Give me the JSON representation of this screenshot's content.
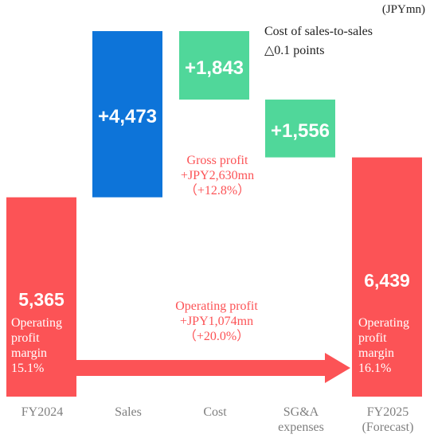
{
  "unit_label": "(JPYmn)",
  "cost_ratio_note": [
    "Cost of sales-to-sales",
    "△0.1 points"
  ],
  "gross_profit_note": [
    "Gross profit",
    "+JPY2,630mn",
    "（+12.8%）"
  ],
  "operating_profit_note": [
    "Operating profit",
    "+JPY1,074mn",
    "（+20.0%）"
  ],
  "start_bar": {
    "label": "FY2024",
    "value": 5365,
    "value_label": "5,365",
    "margin_lines": [
      "Operating",
      "profit",
      "margin",
      "15.1%"
    ]
  },
  "end_bar": {
    "label": "FY2025 (Forecast)",
    "label_lines": [
      "FY2025",
      "(Forecast)"
    ],
    "value": 6439,
    "value_label": "6,439",
    "margin_lines": [
      "Operating",
      "profit",
      "margin",
      "16.1%"
    ]
  },
  "colors": {
    "profit": "#fc5356",
    "sales": "#0d74d9",
    "cost": "#50d79a",
    "axis_text": "#7f7f7f",
    "note_text": "#222222"
  },
  "chart_data": {
    "type": "bar",
    "subtype": "waterfall",
    "categories": [
      "FY2024",
      "Sales",
      "Cost",
      "SG&A expenses",
      "FY2025 (Forecast)"
    ],
    "category_label_lines": [
      [
        "FY2024"
      ],
      [
        "Sales"
      ],
      [
        "Cost"
      ],
      [
        "SG&A",
        "expenses"
      ],
      [
        "FY2025",
        "(Forecast)"
      ]
    ],
    "values": [
      5365,
      4473,
      1843,
      1556,
      6439
    ],
    "value_labels": [
      "5,365",
      "+4,473",
      "+1,843",
      "+1,556",
      "6,439"
    ],
    "kinds": [
      "total",
      "increase",
      "decrease",
      "decrease",
      "total"
    ],
    "ylim": [
      0,
      9838
    ],
    "title": "",
    "xlabel": "",
    "ylabel": ""
  }
}
